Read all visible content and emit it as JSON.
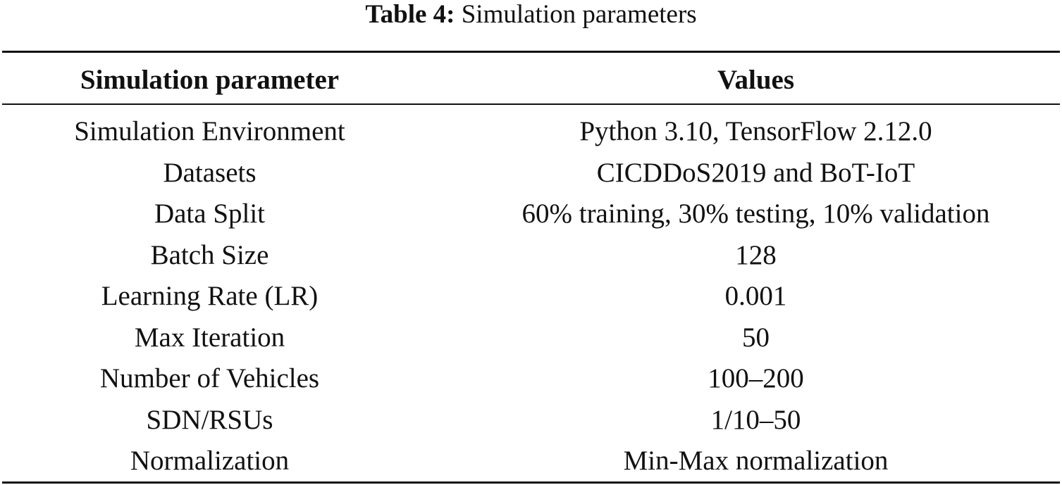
{
  "caption": {
    "label": "Table 4:",
    "title": "Simulation parameters"
  },
  "table": {
    "headers": [
      "Simulation parameter",
      "Values"
    ],
    "rows": [
      [
        "Simulation Environment",
        "Python 3.10, TensorFlow 2.12.0"
      ],
      [
        "Datasets",
        "CICDDoS2019 and BoT-IoT"
      ],
      [
        "Data Split",
        "60% training, 30% testing, 10% validation"
      ],
      [
        "Batch Size",
        "128"
      ],
      [
        "Learning Rate (LR)",
        "0.001"
      ],
      [
        "Max Iteration",
        "50"
      ],
      [
        "Number of Vehicles",
        "100–200"
      ],
      [
        "SDN/RSUs",
        "1/10–50"
      ],
      [
        "Normalization",
        "Min-Max normalization"
      ]
    ]
  }
}
